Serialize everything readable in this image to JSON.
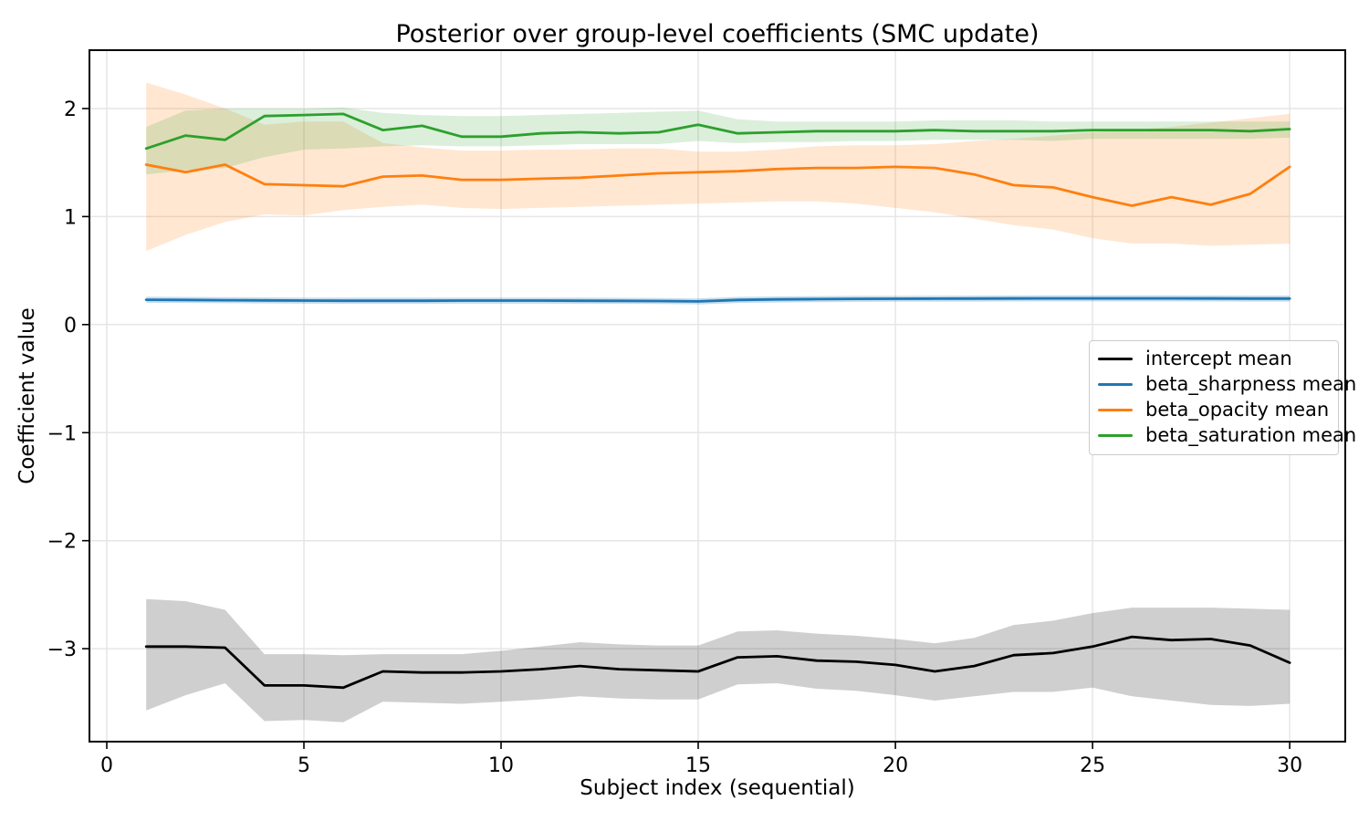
{
  "chart_data": {
    "type": "line",
    "title": "Posterior over group-level coefficients (SMC update)",
    "xlabel": "Subject index (sequential)",
    "ylabel": "Coefficient value",
    "grid": true,
    "legend_position": "right, inside axes, upper-middle",
    "xlim": [
      -0.44,
      31.41
    ],
    "ylim": [
      -3.86,
      2.54
    ],
    "x_ticks": {
      "values": [
        0,
        5,
        10,
        15,
        20,
        25,
        30
      ],
      "labels": [
        "0",
        "5",
        "10",
        "15",
        "20",
        "25",
        "30"
      ]
    },
    "y_ticks": {
      "values": [
        2,
        1,
        0,
        -1,
        -2,
        -3
      ],
      "labels": [
        "2",
        "1",
        "0",
        "−1",
        "−2",
        "−3"
      ]
    },
    "x": [
      1,
      2,
      3,
      4,
      5,
      6,
      7,
      8,
      9,
      10,
      11,
      12,
      13,
      14,
      15,
      16,
      17,
      18,
      19,
      20,
      21,
      22,
      23,
      24,
      25,
      26,
      27,
      28,
      29,
      30
    ],
    "series": [
      {
        "name": "intercept mean",
        "color": "#000000",
        "band_rgba": "rgba(0,0,0,0.19)",
        "mean": [
          -2.98,
          -2.98,
          -2.99,
          -3.34,
          -3.34,
          -3.36,
          -3.21,
          -3.22,
          -3.22,
          -3.21,
          -3.19,
          -3.16,
          -3.19,
          -3.2,
          -3.21,
          -3.08,
          -3.07,
          -3.11,
          -3.12,
          -3.15,
          -3.21,
          -3.16,
          -3.06,
          -3.04,
          -2.98,
          -2.89,
          -2.92,
          -2.91,
          -2.97,
          -3.13
        ],
        "band_low": [
          -3.57,
          -3.43,
          -3.32,
          -3.67,
          -3.66,
          -3.68,
          -3.49,
          -3.5,
          -3.51,
          -3.49,
          -3.47,
          -3.44,
          -3.46,
          -3.47,
          -3.47,
          -3.33,
          -3.32,
          -3.37,
          -3.39,
          -3.43,
          -3.48,
          -3.44,
          -3.4,
          -3.4,
          -3.36,
          -3.44,
          -3.48,
          -3.52,
          -3.53,
          -3.51
        ],
        "band_high": [
          -2.54,
          -2.56,
          -2.64,
          -3.05,
          -3.05,
          -3.06,
          -3.05,
          -3.05,
          -3.05,
          -3.02,
          -2.98,
          -2.94,
          -2.96,
          -2.97,
          -2.97,
          -2.84,
          -2.83,
          -2.86,
          -2.88,
          -2.91,
          -2.95,
          -2.9,
          -2.78,
          -2.74,
          -2.67,
          -2.62,
          -2.62,
          -2.62,
          -2.63,
          -2.64
        ]
      },
      {
        "name": "beta_sharpness mean",
        "color": "#1f77b4",
        "band_rgba": "rgba(31,119,180,0.25)",
        "mean": [
          0.23,
          0.228,
          0.226,
          0.224,
          0.222,
          0.221,
          0.221,
          0.221,
          0.222,
          0.222,
          0.222,
          0.221,
          0.22,
          0.218,
          0.215,
          0.228,
          0.233,
          0.236,
          0.238,
          0.239,
          0.24,
          0.241,
          0.242,
          0.243,
          0.243,
          0.243,
          0.243,
          0.242,
          0.241,
          0.241
        ],
        "band_low": [
          0.202,
          0.2,
          0.198,
          0.196,
          0.194,
          0.193,
          0.193,
          0.193,
          0.194,
          0.194,
          0.194,
          0.193,
          0.192,
          0.19,
          0.187,
          0.2,
          0.205,
          0.208,
          0.21,
          0.211,
          0.212,
          0.213,
          0.214,
          0.215,
          0.215,
          0.215,
          0.215,
          0.214,
          0.213,
          0.213
        ],
        "band_high": [
          0.258,
          0.256,
          0.254,
          0.252,
          0.25,
          0.249,
          0.249,
          0.249,
          0.25,
          0.25,
          0.25,
          0.249,
          0.248,
          0.246,
          0.243,
          0.256,
          0.261,
          0.264,
          0.266,
          0.267,
          0.268,
          0.269,
          0.27,
          0.271,
          0.271,
          0.271,
          0.271,
          0.27,
          0.269,
          0.269
        ]
      },
      {
        "name": "beta_opacity mean",
        "color": "#ff7f0e",
        "band_rgba": "rgba(255,127,14,0.19)",
        "mean": [
          1.48,
          1.41,
          1.48,
          1.3,
          1.29,
          1.28,
          1.37,
          1.38,
          1.34,
          1.34,
          1.35,
          1.36,
          1.38,
          1.4,
          1.41,
          1.42,
          1.44,
          1.45,
          1.45,
          1.46,
          1.45,
          1.39,
          1.29,
          1.27,
          1.18,
          1.1,
          1.18,
          1.11,
          1.21,
          1.46
        ],
        "band_low": [
          0.68,
          0.83,
          0.95,
          1.02,
          1.01,
          1.06,
          1.09,
          1.11,
          1.08,
          1.07,
          1.08,
          1.09,
          1.1,
          1.11,
          1.12,
          1.13,
          1.14,
          1.14,
          1.12,
          1.08,
          1.04,
          0.98,
          0.92,
          0.88,
          0.8,
          0.75,
          0.75,
          0.73,
          0.74,
          0.75
        ],
        "band_high": [
          2.24,
          2.13,
          2.0,
          1.85,
          1.88,
          1.88,
          1.68,
          1.64,
          1.61,
          1.61,
          1.62,
          1.62,
          1.63,
          1.63,
          1.6,
          1.6,
          1.62,
          1.65,
          1.66,
          1.66,
          1.67,
          1.7,
          1.72,
          1.75,
          1.78,
          1.8,
          1.83,
          1.87,
          1.91,
          1.95
        ]
      },
      {
        "name": "beta_saturation mean",
        "color": "#2ca02c",
        "band_rgba": "rgba(44,160,44,0.17)",
        "mean": [
          1.63,
          1.75,
          1.71,
          1.93,
          1.94,
          1.95,
          1.8,
          1.84,
          1.74,
          1.74,
          1.77,
          1.78,
          1.77,
          1.78,
          1.85,
          1.77,
          1.78,
          1.79,
          1.79,
          1.79,
          1.8,
          1.79,
          1.79,
          1.79,
          1.8,
          1.8,
          1.8,
          1.8,
          1.79,
          1.81
        ],
        "band_low": [
          1.39,
          1.43,
          1.45,
          1.55,
          1.62,
          1.63,
          1.65,
          1.66,
          1.65,
          1.65,
          1.66,
          1.67,
          1.67,
          1.67,
          1.7,
          1.68,
          1.69,
          1.69,
          1.7,
          1.7,
          1.71,
          1.71,
          1.71,
          1.7,
          1.72,
          1.72,
          1.72,
          1.72,
          1.72,
          1.73
        ],
        "band_high": [
          1.83,
          1.98,
          2.0,
          2.0,
          2.0,
          2.01,
          1.96,
          1.94,
          1.93,
          1.93,
          1.94,
          1.95,
          1.96,
          1.97,
          1.98,
          1.9,
          1.88,
          1.88,
          1.88,
          1.88,
          1.89,
          1.89,
          1.89,
          1.88,
          1.88,
          1.88,
          1.88,
          1.88,
          1.88,
          1.88
        ]
      }
    ]
  },
  "colors": {
    "background": "#ffffff",
    "grid": "#e6e6e6",
    "spine": "#000000",
    "tick_text": "#000000",
    "legend_border": "#cccccc"
  }
}
